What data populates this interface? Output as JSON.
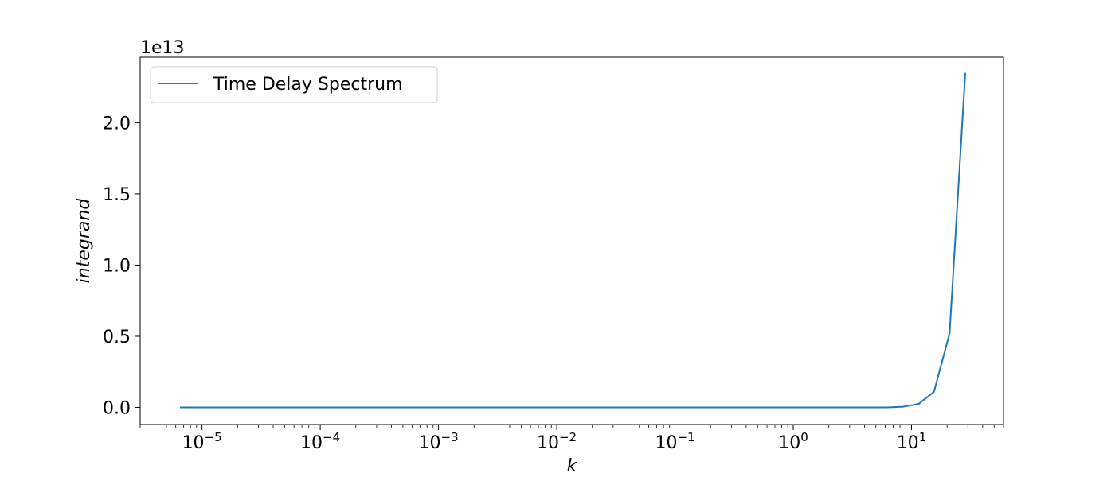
{
  "chart_data": {
    "type": "line",
    "title": "",
    "xlabel": "k",
    "ylabel": "integrand",
    "x_scale": "log",
    "xlim": [
      3e-06,
      60
    ],
    "ylim": [
      -1200000000000.0,
      24600000000000.0
    ],
    "offset_label": "1e13",
    "x_ticks": [
      {
        "value": 1e-05,
        "base": "10",
        "exp": "−5"
      },
      {
        "value": 0.0001,
        "base": "10",
        "exp": "−4"
      },
      {
        "value": 0.001,
        "base": "10",
        "exp": "−3"
      },
      {
        "value": 0.01,
        "base": "10",
        "exp": "−2"
      },
      {
        "value": 0.1,
        "base": "10",
        "exp": "−1"
      },
      {
        "value": 1,
        "base": "10",
        "exp": "0"
      },
      {
        "value": 10,
        "base": "10",
        "exp": "1"
      }
    ],
    "y_ticks": [
      {
        "value": 0,
        "label": "0.0"
      },
      {
        "value": 5000000000000.0,
        "label": "0.5"
      },
      {
        "value": 10000000000000.0,
        "label": "1.0"
      },
      {
        "value": 15000000000000.0,
        "label": "1.5"
      },
      {
        "value": 20000000000000.0,
        "label": "2.0"
      }
    ],
    "grid": false,
    "legend_position": "top-left",
    "series": [
      {
        "name": "Time Delay Spectrum",
        "color": "#1f77b4",
        "x": [
          6.5e-06,
          1e-05,
          0.0001,
          0.001,
          0.01,
          0.1,
          1,
          3,
          5,
          6.2,
          8.5,
          11.5,
          15.5,
          21,
          28.5
        ],
        "y": [
          0,
          0,
          0,
          0,
          0,
          0,
          0,
          0,
          0,
          2000000000.0,
          50000000000.0,
          250000000000.0,
          1100000000000.0,
          5200000000000.0,
          23500000000000.0
        ]
      }
    ]
  }
}
